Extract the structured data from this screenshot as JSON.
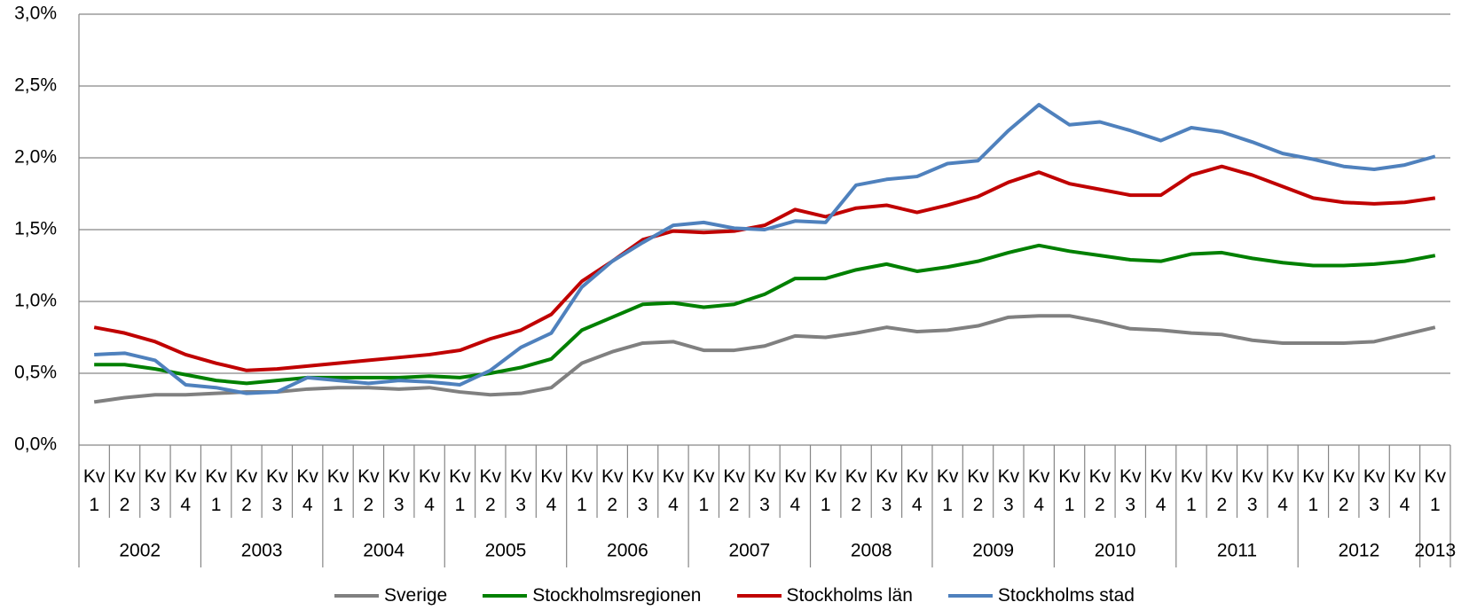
{
  "chart_data": {
    "type": "line",
    "categories": [
      "Kv 1",
      "Kv 2",
      "Kv 3",
      "Kv 4",
      "Kv 1",
      "Kv 2",
      "Kv 3",
      "Kv 4",
      "Kv 1",
      "Kv 2",
      "Kv 3",
      "Kv 4",
      "Kv 1",
      "Kv 2",
      "Kv 3",
      "Kv 4",
      "Kv 1",
      "Kv 2",
      "Kv 3",
      "Kv 4",
      "Kv 1",
      "Kv 2",
      "Kv 3",
      "Kv 4",
      "Kv 1",
      "Kv 2",
      "Kv 3",
      "Kv 4",
      "Kv 1",
      "Kv 2",
      "Kv 3",
      "Kv 4",
      "Kv 1",
      "Kv 2",
      "Kv 3",
      "Kv 4",
      "Kv 1",
      "Kv 2",
      "Kv 3",
      "Kv 4",
      "Kv 1",
      "Kv 2",
      "Kv 3",
      "Kv 4",
      "Kv 1"
    ],
    "x_groups": [
      {
        "label": "2002",
        "span": 4
      },
      {
        "label": "2003",
        "span": 4
      },
      {
        "label": "2004",
        "span": 4
      },
      {
        "label": "2005",
        "span": 4
      },
      {
        "label": "2006",
        "span": 4
      },
      {
        "label": "2007",
        "span": 4
      },
      {
        "label": "2008",
        "span": 4
      },
      {
        "label": "2009",
        "span": 4
      },
      {
        "label": "2010",
        "span": 4
      },
      {
        "label": "2011",
        "span": 4
      },
      {
        "label": "2012",
        "span": 4
      },
      {
        "label": "2013",
        "span": 1
      }
    ],
    "series": [
      {
        "name": "Sverige",
        "color": "#808080",
        "values": [
          0.3,
          0.33,
          0.35,
          0.35,
          0.36,
          0.37,
          0.37,
          0.39,
          0.4,
          0.4,
          0.39,
          0.4,
          0.37,
          0.35,
          0.36,
          0.4,
          0.57,
          0.65,
          0.71,
          0.72,
          0.66,
          0.66,
          0.69,
          0.76,
          0.75,
          0.78,
          0.82,
          0.79,
          0.8,
          0.83,
          0.89,
          0.9,
          0.9,
          0.86,
          0.81,
          0.8,
          0.78,
          0.77,
          0.73,
          0.71,
          0.71,
          0.71,
          0.72,
          0.77,
          0.82
        ]
      },
      {
        "name": "Stockholmsregionen",
        "color": "#008000",
        "values": [
          0.56,
          0.56,
          0.53,
          0.49,
          0.45,
          0.43,
          0.45,
          0.47,
          0.47,
          0.47,
          0.47,
          0.48,
          0.47,
          0.5,
          0.54,
          0.6,
          0.8,
          0.89,
          0.98,
          0.99,
          0.96,
          0.98,
          1.05,
          1.16,
          1.16,
          1.22,
          1.26,
          1.21,
          1.24,
          1.28,
          1.34,
          1.39,
          1.35,
          1.32,
          1.29,
          1.28,
          1.33,
          1.34,
          1.3,
          1.27,
          1.25,
          1.25,
          1.26,
          1.28,
          1.32
        ]
      },
      {
        "name": "Stockholms län",
        "color": "#c00000",
        "values": [
          0.82,
          0.78,
          0.72,
          0.63,
          0.57,
          0.52,
          0.53,
          0.55,
          0.57,
          0.59,
          0.61,
          0.63,
          0.66,
          0.74,
          0.8,
          0.91,
          1.14,
          1.28,
          1.43,
          1.49,
          1.48,
          1.49,
          1.53,
          1.64,
          1.59,
          1.65,
          1.67,
          1.62,
          1.67,
          1.73,
          1.83,
          1.9,
          1.82,
          1.78,
          1.74,
          1.74,
          1.88,
          1.94,
          1.88,
          1.8,
          1.72,
          1.69,
          1.68,
          1.69,
          1.72
        ]
      },
      {
        "name": "Stockholms stad",
        "color": "#4f81bd",
        "values": [
          0.63,
          0.64,
          0.59,
          0.42,
          0.4,
          0.36,
          0.37,
          0.47,
          0.45,
          0.43,
          0.45,
          0.44,
          0.42,
          0.52,
          0.68,
          0.78,
          1.1,
          1.28,
          1.41,
          1.53,
          1.55,
          1.51,
          1.5,
          1.56,
          1.55,
          1.81,
          1.85,
          1.87,
          1.96,
          1.98,
          2.19,
          2.37,
          2.23,
          2.25,
          2.19,
          2.12,
          2.21,
          2.18,
          2.11,
          2.03,
          1.99,
          1.94,
          1.92,
          1.95,
          2.01
        ]
      }
    ],
    "ylim": [
      0,
      3.0
    ],
    "yticks": [
      {
        "value": 0,
        "label": "0,0%"
      },
      {
        "value": 0.5,
        "label": "0,5%"
      },
      {
        "value": 1.0,
        "label": "1,0%"
      },
      {
        "value": 1.5,
        "label": "1,5%"
      },
      {
        "value": 2.0,
        "label": "2,0%"
      },
      {
        "value": 2.5,
        "label": "2,5%"
      },
      {
        "value": 3.0,
        "label": "3,0%"
      }
    ],
    "grid": true,
    "legend": "bottom"
  }
}
